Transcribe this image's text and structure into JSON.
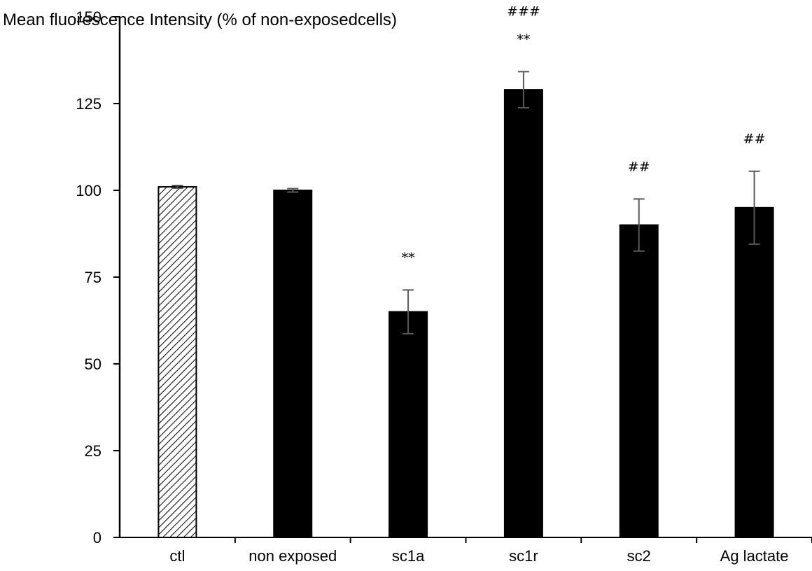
{
  "chart_data": {
    "type": "bar",
    "ylabel": "Mean fluorescence Intensity (% of non-exposedcells)",
    "ylim": [
      0,
      150
    ],
    "yticks": [
      "0",
      "25",
      "50",
      "75",
      "100",
      "125",
      "150"
    ],
    "categories": [
      "ctl",
      "non exposed",
      "sc1a",
      "sc1r",
      "sc2",
      "Ag lactate"
    ],
    "values": [
      101,
      100,
      65,
      129,
      90,
      95
    ],
    "errors": [
      0.4,
      0.5,
      6.3,
      5.2,
      7.5,
      10.5
    ],
    "significance": [
      [],
      [],
      [
        "**"
      ],
      [
        "**",
        "###"
      ],
      [
        "##"
      ],
      [
        "##"
      ]
    ],
    "fills": [
      "hatched",
      "solid",
      "solid",
      "solid",
      "solid",
      "solid"
    ],
    "colors": {
      "bar": "#000000",
      "error": "#595959",
      "axis": "#000000"
    },
    "grid": false,
    "legend": "none"
  }
}
